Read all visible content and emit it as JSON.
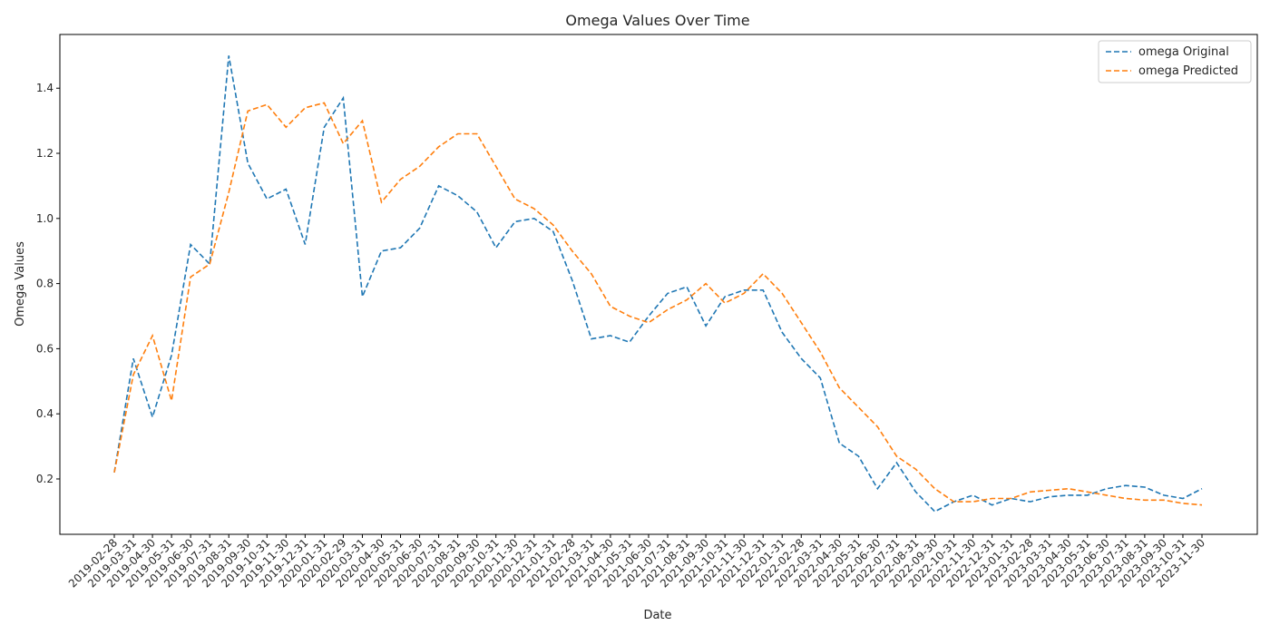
{
  "chart_data": {
    "type": "line",
    "title": "Omega Values Over Time",
    "xlabel": "Date",
    "ylabel": "Omega Values",
    "ylim": [
      0.03,
      1.565
    ],
    "yticks": [
      "0.2",
      "0.4",
      "0.6",
      "0.8",
      "1.0",
      "1.2",
      "1.4"
    ],
    "grid": false,
    "legend_position": "top-right",
    "x": [
      "2019-02-28",
      "2019-03-31",
      "2019-04-30",
      "2019-05-31",
      "2019-06-30",
      "2019-07-31",
      "2019-08-31",
      "2019-09-30",
      "2019-10-31",
      "2019-11-30",
      "2019-12-31",
      "2020-01-31",
      "2020-02-29",
      "2020-03-31",
      "2020-04-30",
      "2020-05-31",
      "2020-06-30",
      "2020-07-31",
      "2020-08-31",
      "2020-09-30",
      "2020-10-31",
      "2020-11-30",
      "2020-12-31",
      "2021-01-31",
      "2021-02-28",
      "2021-03-31",
      "2021-04-30",
      "2021-05-31",
      "2021-06-30",
      "2021-07-31",
      "2021-08-31",
      "2021-09-30",
      "2021-10-31",
      "2021-11-30",
      "2021-12-31",
      "2022-01-31",
      "2022-02-28",
      "2022-03-31",
      "2022-04-30",
      "2022-05-31",
      "2022-06-30",
      "2022-07-31",
      "2022-08-31",
      "2022-09-30",
      "2022-10-31",
      "2022-11-30",
      "2022-12-31",
      "2023-01-31",
      "2023-02-28",
      "2023-03-31",
      "2023-04-30",
      "2023-05-31",
      "2023-06-30",
      "2023-07-31",
      "2023-08-31",
      "2023-09-30",
      "2023-10-31",
      "2023-11-30"
    ],
    "series": [
      {
        "name": "omega Original",
        "color": "#1f77b4",
        "values": [
          0.22,
          0.57,
          0.39,
          0.58,
          0.92,
          0.86,
          1.5,
          1.17,
          1.06,
          1.09,
          0.92,
          1.28,
          1.37,
          0.76,
          0.9,
          0.91,
          0.97,
          1.1,
          1.07,
          1.02,
          0.91,
          0.99,
          1.0,
          0.96,
          0.81,
          0.63,
          0.64,
          0.62,
          0.7,
          0.77,
          0.79,
          0.67,
          0.76,
          0.78,
          0.78,
          0.65,
          0.57,
          0.51,
          0.31,
          0.27,
          0.17,
          0.25,
          0.16,
          0.1,
          0.13,
          0.15,
          0.12,
          0.14,
          0.13,
          0.145,
          0.15,
          0.15,
          0.17,
          0.18,
          0.175,
          0.15,
          0.14,
          0.17
        ]
      },
      {
        "name": "omega Predicted",
        "color": "#ff7f0e",
        "values": [
          0.22,
          0.52,
          0.64,
          0.44,
          0.82,
          0.86,
          1.08,
          1.33,
          1.35,
          1.28,
          1.34,
          1.355,
          1.23,
          1.3,
          1.05,
          1.12,
          1.16,
          1.22,
          1.26,
          1.26,
          1.16,
          1.06,
          1.03,
          0.98,
          0.9,
          0.83,
          0.73,
          0.7,
          0.68,
          0.72,
          0.75,
          0.8,
          0.74,
          0.77,
          0.83,
          0.77,
          0.68,
          0.59,
          0.48,
          0.42,
          0.36,
          0.27,
          0.23,
          0.17,
          0.13,
          0.13,
          0.14,
          0.14,
          0.16,
          0.165,
          0.17,
          0.16,
          0.15,
          0.14,
          0.135,
          0.135,
          0.125,
          0.12
        ]
      }
    ]
  }
}
